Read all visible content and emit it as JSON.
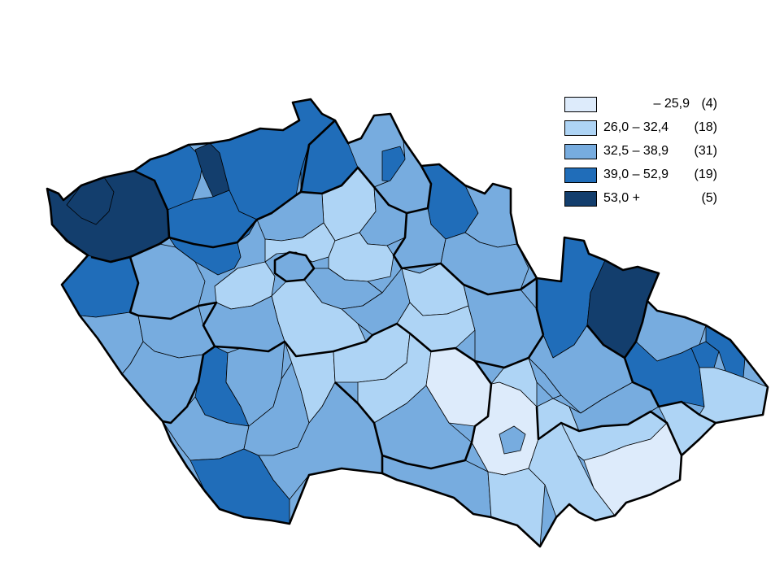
{
  "colors": {
    "c1": "#ddebfb",
    "c2": "#aed4f5",
    "c3": "#77acdf",
    "c4": "#206db9",
    "c5": "#133e6d"
  },
  "legend": [
    {
      "range": "– 25,9",
      "count": "(4)",
      "color": "#ddebfb",
      "align": "right"
    },
    {
      "range": "26,0 – 32,4",
      "count": "(18)",
      "color": "#aed4f5",
      "align": "left"
    },
    {
      "range": "32,5 – 38,9",
      "count": "(31)",
      "color": "#77acdf",
      "align": "left"
    },
    {
      "range": "39,0 – 52,9",
      "count": "(19)",
      "color": "#206db9",
      "align": "left"
    },
    {
      "range": "53,0 +",
      "count": "(5)",
      "color": "#133e6d",
      "align": "left"
    }
  ]
}
